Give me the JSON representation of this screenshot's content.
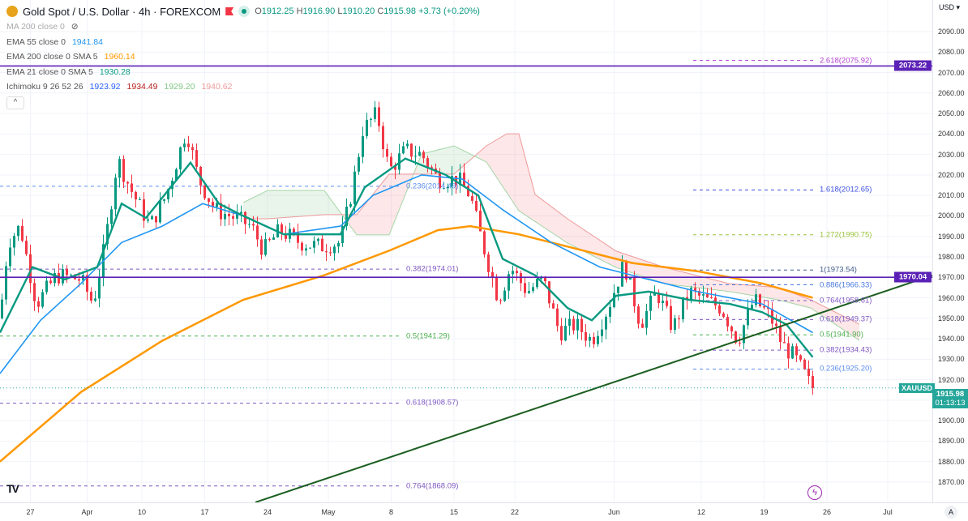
{
  "header": {
    "title": "Gold Spot / U.S. Dollar · 4h · FOREXCOM",
    "open_label": "O",
    "open": "1912.25",
    "high_label": "H",
    "high": "1916.90",
    "low_label": "L",
    "low": "1910.20",
    "close_label": "C",
    "close": "1915.98",
    "change": "+3.73 (+0.20%)"
  },
  "indicators": [
    {
      "label": "MA 200 close 0",
      "values": [],
      "hidden": true
    },
    {
      "label": "EMA 55 close 0",
      "values": [
        {
          "v": "1941.84",
          "color": "#2196f3"
        }
      ]
    },
    {
      "label": "EMA 200 close 0 SMA 5",
      "values": [
        {
          "v": "1960.14",
          "color": "#ff9800"
        }
      ]
    },
    {
      "label": "EMA 21 close 0 SMA 5",
      "values": [
        {
          "v": "1930.28",
          "color": "#089981"
        }
      ]
    },
    {
      "label": "Ichimoku 9 26 52 26",
      "values": [
        {
          "v": "1923.92",
          "color": "#2962ff"
        },
        {
          "v": "1934.49",
          "color": "#b71c1c"
        },
        {
          "v": "1929.20",
          "color": "#81c784"
        },
        {
          "v": "1940.62",
          "color": "#ef9a9a"
        }
      ]
    }
  ],
  "collapse_label": "^",
  "axis": {
    "currency": "USD ▾",
    "auto_label": "A"
  },
  "badges": {
    "hline_top": "2073.22",
    "hline_mid": "1970.04",
    "symbol": "XAUUSD",
    "price": "1915.98",
    "countdown": "01:13:13"
  },
  "chart_data": {
    "type": "candlestick",
    "symbol": "XAUUSD",
    "timeframe": "4h",
    "ylim": [
      1862,
      2105
    ],
    "y_ticks": [
      2090,
      2080,
      2070,
      2060,
      2050,
      2040,
      2030,
      2020,
      2010,
      2000,
      1990,
      1980,
      1970,
      1960,
      1950,
      1940,
      1930,
      1920,
      1900,
      1890,
      1880,
      1870
    ],
    "x_ticks": [
      {
        "bar": 15,
        "label": "27"
      },
      {
        "bar": 43,
        "label": "Apr"
      },
      {
        "bar": 70,
        "label": "10"
      },
      {
        "bar": 101,
        "label": "17"
      },
      {
        "bar": 132,
        "label": "24"
      },
      {
        "bar": 162,
        "label": "May"
      },
      {
        "bar": 193,
        "label": "8"
      },
      {
        "bar": 224,
        "label": "15"
      },
      {
        "bar": 254,
        "label": "22"
      },
      {
        "bar": 303,
        "label": "Jun"
      },
      {
        "bar": 346,
        "label": "12"
      },
      {
        "bar": 377,
        "label": "19"
      },
      {
        "bar": 408,
        "label": "26"
      },
      {
        "bar": 438,
        "label": "Jul"
      }
    ],
    "close_path": [
      [
        0,
        1950
      ],
      [
        4,
        1987
      ],
      [
        10,
        1995
      ],
      [
        18,
        1957
      ],
      [
        28,
        1971
      ],
      [
        40,
        1969
      ],
      [
        46,
        1957
      ],
      [
        52,
        1987
      ],
      [
        58,
        2028
      ],
      [
        64,
        2014
      ],
      [
        74,
        1995
      ],
      [
        82,
        2010
      ],
      [
        92,
        2042
      ],
      [
        98,
        2018
      ],
      [
        106,
        2003
      ],
      [
        116,
        1999
      ],
      [
        124,
        1995
      ],
      [
        130,
        1983
      ],
      [
        138,
        1993
      ],
      [
        148,
        1987
      ],
      [
        158,
        1985
      ],
      [
        168,
        1987
      ],
      [
        174,
        2014
      ],
      [
        179,
        2042
      ],
      [
        186,
        2050
      ],
      [
        192,
        2022
      ],
      [
        200,
        2032
      ],
      [
        208,
        2030
      ],
      [
        216,
        2018
      ],
      [
        226,
        2018
      ],
      [
        232,
        2010
      ],
      [
        238,
        1987
      ],
      [
        246,
        1959
      ],
      [
        252,
        1975
      ],
      [
        260,
        1963
      ],
      [
        268,
        1969
      ],
      [
        276,
        1943
      ],
      [
        284,
        1947
      ],
      [
        292,
        1939
      ],
      [
        300,
        1955
      ],
      [
        308,
        1977
      ],
      [
        316,
        1947
      ],
      [
        324,
        1963
      ],
      [
        332,
        1945
      ],
      [
        340,
        1963
      ],
      [
        348,
        1959
      ],
      [
        356,
        1955
      ],
      [
        364,
        1939
      ],
      [
        372,
        1959
      ],
      [
        380,
        1951
      ],
      [
        386,
        1937
      ],
      [
        392,
        1931
      ],
      [
        398,
        1921
      ],
      [
        401,
        1914
      ]
    ],
    "ema200": [
      [
        0,
        1880
      ],
      [
        40,
        1914
      ],
      [
        80,
        1939
      ],
      [
        120,
        1959
      ],
      [
        160,
        1971
      ],
      [
        192,
        1983
      ],
      [
        216,
        1993
      ],
      [
        232,
        1995
      ],
      [
        256,
        1991
      ],
      [
        280,
        1985
      ],
      [
        312,
        1977
      ],
      [
        344,
        1973
      ],
      [
        376,
        1967
      ],
      [
        401,
        1960
      ]
    ],
    "ema55": [
      [
        0,
        1923
      ],
      [
        20,
        1949
      ],
      [
        40,
        1967
      ],
      [
        60,
        1987
      ],
      [
        80,
        1995
      ],
      [
        100,
        2006
      ],
      [
        120,
        2000
      ],
      [
        140,
        1991
      ],
      [
        168,
        1995
      ],
      [
        184,
        2010
      ],
      [
        208,
        2020
      ],
      [
        228,
        2018
      ],
      [
        248,
        2003
      ],
      [
        272,
        1987
      ],
      [
        296,
        1975
      ],
      [
        320,
        1969
      ],
      [
        344,
        1963
      ],
      [
        376,
        1957
      ],
      [
        401,
        1943
      ]
    ],
    "ema21": [
      [
        0,
        1943
      ],
      [
        16,
        1975
      ],
      [
        32,
        1969
      ],
      [
        48,
        1975
      ],
      [
        60,
        2006
      ],
      [
        72,
        1999
      ],
      [
        94,
        2026
      ],
      [
        108,
        2006
      ],
      [
        120,
        2000
      ],
      [
        140,
        1991
      ],
      [
        168,
        1991
      ],
      [
        180,
        2014
      ],
      [
        200,
        2028
      ],
      [
        220,
        2020
      ],
      [
        236,
        2010
      ],
      [
        248,
        1979
      ],
      [
        264,
        1971
      ],
      [
        280,
        1955
      ],
      [
        292,
        1949
      ],
      [
        304,
        1961
      ],
      [
        320,
        1963
      ],
      [
        340,
        1959
      ],
      [
        360,
        1957
      ],
      [
        376,
        1953
      ],
      [
        388,
        1947
      ],
      [
        401,
        1931
      ]
    ],
    "ichimoku_span_a": [
      [
        120,
        2006.5
      ],
      [
        132,
        2012.4
      ],
      [
        160,
        2012.4
      ],
      [
        176,
        1990.7
      ],
      [
        192,
        1990.7
      ],
      [
        208,
        2030.2
      ],
      [
        224,
        2034.2
      ],
      [
        240,
        2026.3
      ],
      [
        256,
        2002.5
      ],
      [
        280,
        1986.7
      ],
      [
        304,
        1974.8
      ],
      [
        328,
        1966.9
      ],
      [
        360,
        1963
      ],
      [
        384,
        1959
      ],
      [
        400,
        1955
      ],
      [
        424,
        1939.2
      ]
    ],
    "ichimoku_span_b": [
      [
        120,
        1998.6
      ],
      [
        132,
        1998.6
      ],
      [
        160,
        2000.6
      ],
      [
        176,
        2000.6
      ],
      [
        192,
        2020.4
      ],
      [
        224,
        2020.4
      ],
      [
        240,
        2034.2
      ],
      [
        250,
        2040.1
      ],
      [
        256,
        2040.1
      ],
      [
        264,
        2010.5
      ],
      [
        280,
        1998.6
      ],
      [
        304,
        1982.8
      ],
      [
        328,
        1974.8
      ],
      [
        360,
        1966.9
      ],
      [
        384,
        1965
      ],
      [
        400,
        1959
      ],
      [
        424,
        1947.1
      ]
    ],
    "trendline": [
      [
        126,
        1860.1
      ],
      [
        460,
        1970.9
      ]
    ],
    "hlines": [
      {
        "price": 2073.22,
        "color": "#5b21b6"
      },
      {
        "price": 1970.04,
        "color": "#5b21b6"
      }
    ],
    "last_price": 1915.98,
    "fib_left": {
      "from_bar": 0,
      "to_bar": 198,
      "levels": [
        {
          "label": "0.236(2014.49)",
          "price": 2014.49,
          "color": "#5b8def"
        },
        {
          "label": "0.382(1974.01)",
          "price": 1974.01,
          "color": "#7e57c2"
        },
        {
          "label": "0.5(1941.29)",
          "price": 1941.29,
          "color": "#4caf50"
        },
        {
          "label": "0.618(1908.57)",
          "price": 1908.57,
          "color": "#7e57c2"
        },
        {
          "label": "0.764(1868.09)",
          "price": 1868.09,
          "color": "#7e57c2"
        }
      ]
    },
    "fib_right": {
      "from_bar": 342,
      "to_bar": 402,
      "levels": [
        {
          "label": "2.618(2075.92)",
          "price": 2075.92,
          "color": "#b040d0"
        },
        {
          "label": "1.618(2012.65)",
          "price": 2012.65,
          "color": "#3f51e0"
        },
        {
          "label": "1.272(1990.75)",
          "price": 1990.75,
          "color": "#9bc33a"
        },
        {
          "label": "1(1973.54)",
          "price": 1973.54,
          "color": "#3d5a8a"
        },
        {
          "label": "0.886(1966.33)",
          "price": 1966.33,
          "color": "#4a7ae0"
        },
        {
          "label": "0.764(1958.61)",
          "price": 1958.61,
          "color": "#7e57c2"
        },
        {
          "label": "0.618(1949.37)",
          "price": 1949.37,
          "color": "#7e57c2"
        },
        {
          "label": "0.5(1941.90)",
          "price": 1941.9,
          "color": "#4caf50"
        },
        {
          "label": "0.382(1934.43)",
          "price": 1934.43,
          "color": "#7e57c2"
        },
        {
          "label": "0.236(1925.20)",
          "price": 1925.2,
          "color": "#5b8def"
        }
      ]
    },
    "colors": {
      "up": "#089981",
      "down": "#f23645",
      "ema200": "#ff9800",
      "ema55": "#2196f3",
      "ema21": "#089981",
      "trend": "#1b5e20"
    }
  }
}
